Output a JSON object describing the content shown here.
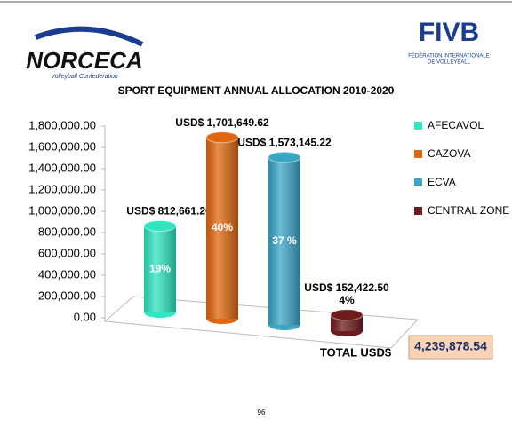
{
  "header": {
    "left_logo": "NORCECA",
    "left_logo_sub": "Volleyball Confederation",
    "right_logo": "FIVB",
    "right_logo_sub_1": "FÉDÉRATION INTERNATIONALE",
    "right_logo_sub_2": "DE VOLLEYBALL"
  },
  "chart_data": {
    "type": "bar",
    "title": "SPORT EQUIPMENT ANNUAL ALLOCATION 2010-2020",
    "categories": [
      "AFECAVOL",
      "CAZOVA",
      "ECVA",
      "CENTRAL ZONE"
    ],
    "values": [
      812661.2,
      1701649.62,
      1573145.22,
      152422.5
    ],
    "value_labels": [
      "USD$ 812,661.20",
      "USD$ 1,701,649.62",
      "USD$ 1,573,145.22",
      "USD$ 152,422.50"
    ],
    "percent_labels": [
      "19%",
      "40%",
      "37 %",
      "4%"
    ],
    "colors": [
      "#2ee6c2",
      "#e0670f",
      "#3aa6c6",
      "#6e1b1b"
    ],
    "ylim": [
      0,
      1800000
    ],
    "yticks": [
      {
        "value": 0,
        "label": "0.00"
      },
      {
        "value": 200000,
        "label": "200,000.00"
      },
      {
        "value": 400000,
        "label": "400,000.00"
      },
      {
        "value": 600000,
        "label": "600,000.00"
      },
      {
        "value": 800000,
        "label": "800,000.00"
      },
      {
        "value": 1000000,
        "label": "1,000,000.00"
      },
      {
        "value": 1200000,
        "label": "1,200,000.00"
      },
      {
        "value": 1400000,
        "label": "1,400,000.00"
      },
      {
        "value": 1600000,
        "label": "1,600,000.00"
      },
      {
        "value": 1800000,
        "label": "1,800,000.00"
      }
    ],
    "total_label": "TOTAL USD$",
    "total_value": 4239878.54,
    "total_value_label": "4,239,878.54",
    "legend": "right"
  },
  "page_number": "96"
}
